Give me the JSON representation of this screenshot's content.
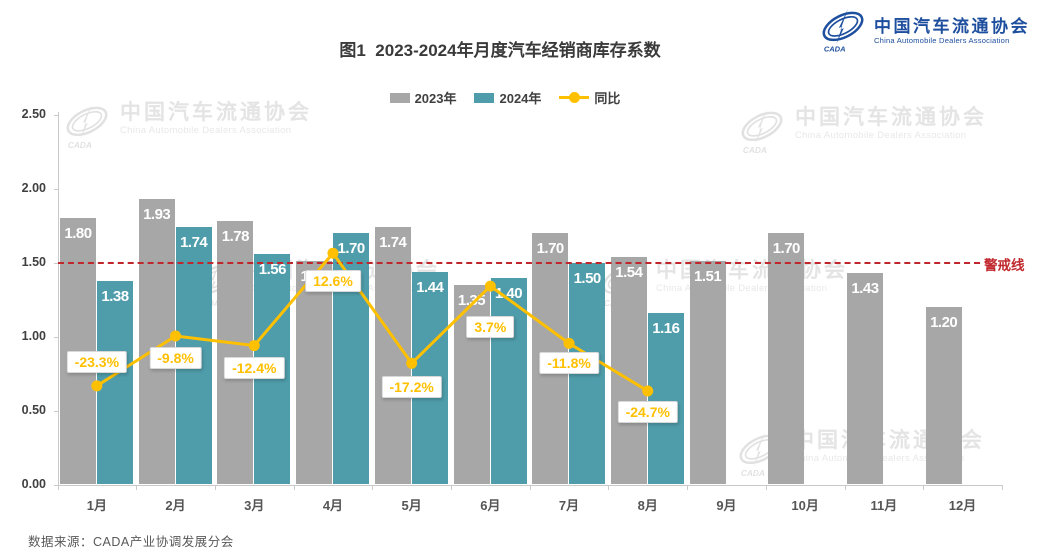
{
  "header": {
    "title": "图1  2023-2024年月度汽车经销商库存系数",
    "logo": {
      "name_cn": "中国汽车流通协会",
      "name_en": "China Automobile Dealers Association",
      "mark_text": "CADA",
      "brand_color": "#1e4f9e"
    }
  },
  "legend": [
    {
      "label": "2023年",
      "type": "bar",
      "color": "#a7a7a7"
    },
    {
      "label": "2024年",
      "type": "bar",
      "color": "#4f9dab"
    },
    {
      "label": "同比",
      "type": "line",
      "color": "#ffc000"
    }
  ],
  "chart_data": {
    "type": "bar",
    "subtype": "grouped bars with yoy line",
    "title": "图1  2023-2024年月度汽车经销商库存系数",
    "categories": [
      "1月",
      "2月",
      "3月",
      "4月",
      "5月",
      "6月",
      "7月",
      "8月",
      "9月",
      "10月",
      "11月",
      "12月"
    ],
    "series": [
      {
        "name": "2023年",
        "type": "bar",
        "color": "#a7a7a7",
        "values": [
          1.8,
          1.93,
          1.78,
          1.51,
          1.74,
          1.35,
          1.7,
          1.54,
          1.51,
          1.7,
          1.43,
          1.2
        ]
      },
      {
        "name": "2024年",
        "type": "bar",
        "color": "#4f9dab",
        "values": [
          1.38,
          1.74,
          1.56,
          1.7,
          1.44,
          1.4,
          1.5,
          1.16
        ]
      },
      {
        "name": "同比",
        "type": "line",
        "color": "#ffc000",
        "unit": "%",
        "values": [
          -23.3,
          -9.8,
          -12.4,
          12.6,
          -17.2,
          3.7,
          -11.8,
          -24.7
        ]
      }
    ],
    "y_axis": {
      "min": 0,
      "max": 2.5,
      "tick_labels": [
        "0.00",
        "0.50",
        "1.00",
        "1.50",
        "2.00",
        "2.50"
      ],
      "grid": false
    },
    "secondary_y_axis": {
      "min": -50,
      "max": 50,
      "visible": false
    },
    "reference_line": {
      "value": 1.5,
      "label": "警戒线",
      "color": "#c0272d",
      "style": "dashed"
    },
    "legend_position": "top-center"
  },
  "watermark": {
    "name_cn": "中国汽车流通协会",
    "name_en": "China Automobile Dealers Association",
    "mark_text": "CADA"
  },
  "footer": {
    "source": "数据来源：CADA产业协调发展分会"
  }
}
